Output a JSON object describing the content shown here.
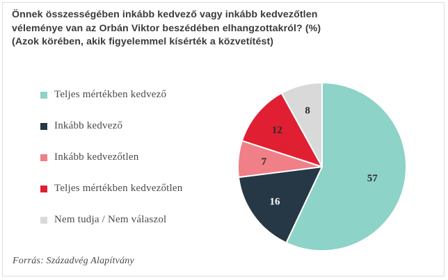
{
  "title_lines": [
    "Önnek összességében inkább kedvező vagy inkább kedvezőtlen",
    "véleménye van az Orbán Viktor beszédében elhangzottakról? (%)",
    "(Azok körében, akik figyelemmel kísérték a közvetítést)"
  ],
  "source": "Forrás: Századvég Alapítvány",
  "chart_data": {
    "type": "pie",
    "title": "Önnek összességében inkább kedvező vagy inkább kedvezőtlen véleménye van az Orbán Viktor beszédében elhangzottakról? (%) (Azok körében, akik figyelemmel kísérték a közvetítést)",
    "start_angle_deg": 0,
    "direction": "clockwise",
    "legend_position": "left",
    "slices": [
      {
        "label": "Teljes mértékben kedvező",
        "value": 57,
        "color": "#8dd3c7",
        "label_color": "#2a2a2a"
      },
      {
        "label": "Inkább kedvező",
        "value": 16,
        "color": "#263845",
        "label_color": "#ffffff"
      },
      {
        "label": "Inkább kedvezőtlen",
        "value": 7,
        "color": "#f07f87",
        "label_color": "#2a2a2a"
      },
      {
        "label": "Teljes mértékben kedvezőtlen",
        "value": 12,
        "color": "#e01f33",
        "label_color": "#2a2a2a"
      },
      {
        "label": "Nem tudja / Nem válaszol",
        "value": 8,
        "color": "#d9d9d9",
        "label_color": "#2a2a2a"
      }
    ]
  }
}
